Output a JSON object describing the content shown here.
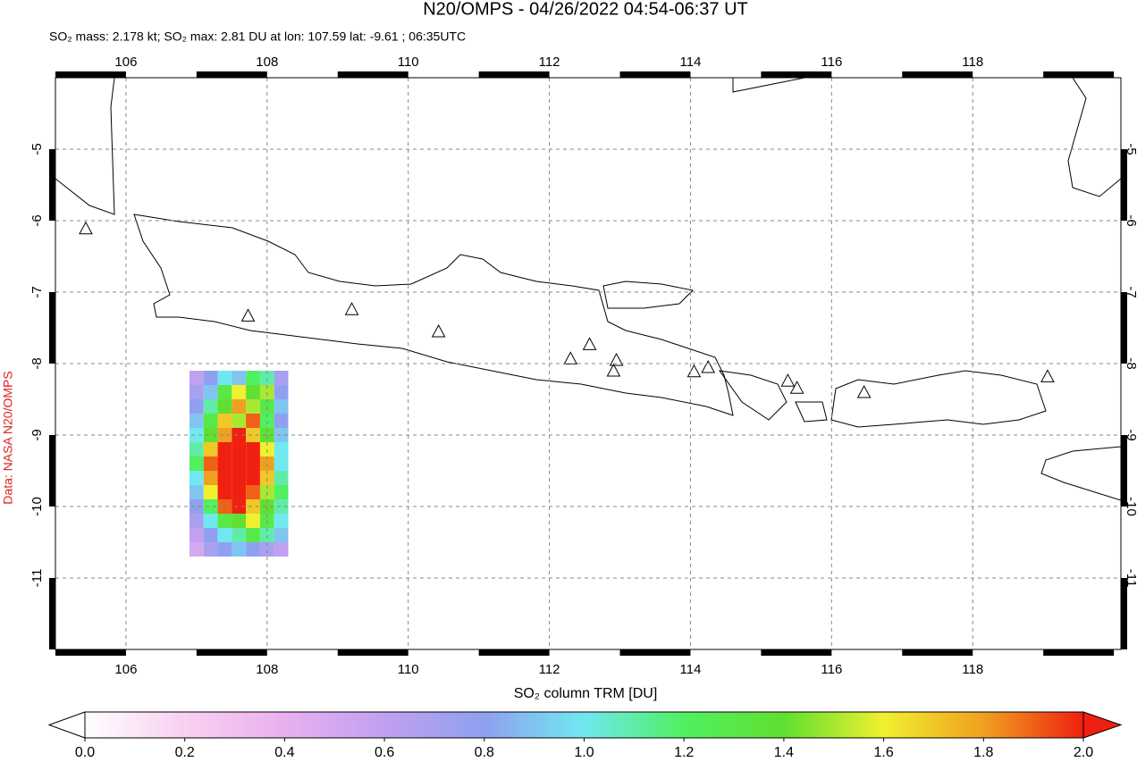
{
  "title": "N20/OMPS - 04/26/2022 04:54-06:37 UT",
  "subtitle": "SO₂ mass: 2.178 kt; SO₂ max: 2.81 DU at lon: 107.59 lat: -9.61 ; 06:35UTC",
  "credit": "Data: NASA N20/OMPS",
  "chart_data": {
    "type": "heatmap",
    "xlim": [
      105,
      120.1
    ],
    "ylim": [
      -12,
      -4
    ],
    "xticks": [
      106,
      108,
      110,
      112,
      114,
      116,
      118
    ],
    "yticks": [
      -5,
      -6,
      -7,
      -8,
      -9,
      -10,
      -11
    ],
    "grid": true,
    "grid_cells": {
      "lon": [
        107.0,
        107.2,
        107.4,
        107.6,
        107.8,
        108.0,
        108.2
      ],
      "lat": [
        -8.2,
        -8.4,
        -8.6,
        -8.8,
        -9.0,
        -9.2,
        -9.4,
        -9.6,
        -9.8,
        -10.0,
        -10.2,
        -10.4,
        -10.6
      ],
      "values": [
        [
          0.6,
          0.8,
          1.0,
          0.9,
          1.2,
          1.1,
          0.7
        ],
        [
          0.7,
          0.9,
          1.3,
          1.6,
          1.4,
          1.5,
          0.8
        ],
        [
          0.8,
          1.1,
          1.4,
          1.8,
          1.5,
          1.3,
          0.9
        ],
        [
          0.9,
          1.3,
          1.7,
          1.5,
          1.9,
          1.2,
          0.8
        ],
        [
          1.0,
          1.4,
          1.8,
          2.0,
          1.7,
          1.4,
          0.9
        ],
        [
          1.1,
          1.7,
          2.3,
          2.5,
          2.2,
          1.6,
          1.0
        ],
        [
          1.2,
          1.9,
          2.6,
          2.8,
          2.4,
          1.8,
          1.0
        ],
        [
          1.0,
          1.8,
          2.4,
          2.81,
          2.3,
          1.7,
          1.1
        ],
        [
          0.9,
          1.6,
          2.1,
          2.6,
          1.9,
          1.5,
          1.2
        ],
        [
          0.8,
          1.2,
          1.9,
          2.2,
          1.7,
          1.4,
          1.1
        ],
        [
          0.7,
          1.0,
          1.3,
          1.4,
          1.6,
          1.3,
          1.0
        ],
        [
          0.6,
          0.8,
          1.0,
          1.1,
          1.3,
          1.1,
          0.9
        ],
        [
          0.5,
          0.7,
          0.8,
          0.9,
          0.8,
          0.7,
          0.6
        ]
      ]
    },
    "volcanoes": {
      "lon": [
        105.43,
        107.73,
        109.2,
        110.43,
        112.3,
        112.57,
        112.95,
        112.91,
        114.05,
        114.25,
        115.38,
        115.51,
        116.46,
        119.06
      ],
      "lat": [
        -6.11,
        -7.33,
        -7.24,
        -7.55,
        -7.93,
        -7.73,
        -7.95,
        -8.1,
        -8.11,
        -8.05,
        -8.24,
        -8.34,
        -8.4,
        -8.18
      ]
    },
    "colorbar": {
      "label": "SO₂ column TRM [DU]",
      "range": [
        0,
        2
      ],
      "ticks": [
        {
          "value": 0,
          "label": "0.0"
        },
        {
          "value": 0.2,
          "label": "0.2"
        },
        {
          "value": 0.4,
          "label": "0.4"
        },
        {
          "value": 0.6,
          "label": "0.6"
        },
        {
          "value": 0.8,
          "label": "0.8"
        },
        {
          "value": 1.0,
          "label": "1.0"
        },
        {
          "value": 1.2,
          "label": "1.2"
        },
        {
          "value": 1.4,
          "label": "1.4"
        },
        {
          "value": 1.6,
          "label": "1.6"
        },
        {
          "value": 1.8,
          "label": "1.8"
        },
        {
          "value": 2.0,
          "label": "2.0"
        }
      ],
      "colors": [
        "#ffffff",
        "#f8d0f0",
        "#eab0f0",
        "#c0a0f0",
        "#90a0f0",
        "#70e8f0",
        "#50f060",
        "#60e030",
        "#f0f030",
        "#f0a020",
        "#f02010"
      ]
    }
  }
}
